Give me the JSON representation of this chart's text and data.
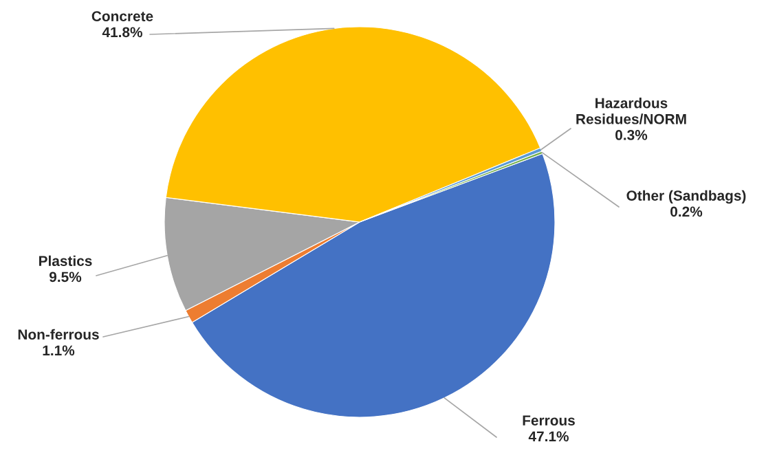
{
  "chart_data": {
    "type": "pie",
    "categories": [
      "Ferrous",
      "Non-ferrous",
      "Plastics",
      "Concrete",
      "Hazardous Residues/NORM",
      "Other (Sandbags)"
    ],
    "values": [
      47.1,
      1.1,
      9.5,
      41.8,
      0.3,
      0.2
    ],
    "value_labels": [
      "47.1%",
      "1.1%",
      "9.5%",
      "41.8%",
      "0.3%",
      "0.2%"
    ],
    "colors": [
      "#4472c4",
      "#ed7d31",
      "#a5a5a5",
      "#ffc000",
      "#5b9bd5",
      "#70ad47"
    ],
    "legend": false
  }
}
